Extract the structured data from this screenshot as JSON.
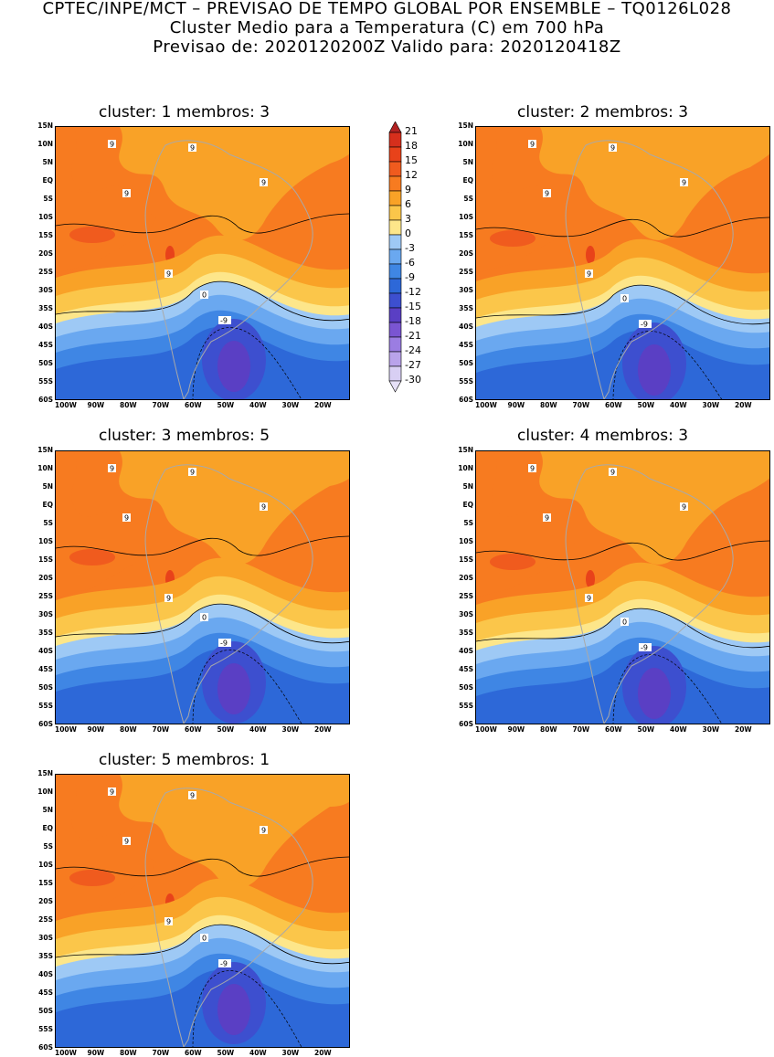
{
  "header": {
    "line1": "CPTEC/INPE/MCT – PREVISAO DE TEMPO GLOBAL POR ENSEMBLE – TQ0126L028",
    "line2": "Cluster Medio para a Temperatura (C) em 700 hPa",
    "line3": "Previsao de: 2020120200Z   Valido para: 2020120418Z"
  },
  "panels": [
    {
      "title": "cluster: 1   membros: 3"
    },
    {
      "title": "cluster: 2   membros: 3"
    },
    {
      "title": "cluster: 3   membros: 5"
    },
    {
      "title": "cluster: 4   membros: 3"
    },
    {
      "title": "cluster: 5   membros: 1"
    }
  ],
  "axes": {
    "lat_labels": [
      "15N",
      "10N",
      "5N",
      "EQ",
      "5S",
      "10S",
      "15S",
      "20S",
      "25S",
      "30S",
      "35S",
      "40S",
      "45S",
      "50S",
      "55S",
      "60S"
    ],
    "lon_labels": [
      "100W",
      "90W",
      "80W",
      "70W",
      "60W",
      "50W",
      "40W",
      "30W",
      "20W"
    ]
  },
  "legend": {
    "labels": [
      "21",
      "18",
      "15",
      "12",
      "9",
      "6",
      "3",
      "0",
      "-3",
      "-6",
      "-9",
      "-12",
      "-15",
      "-18",
      "-21",
      "-24",
      "-27",
      "-30"
    ],
    "colors": [
      "#b22222",
      "#d62f1c",
      "#e8421a",
      "#f05b1e",
      "#f77b20",
      "#f9a227",
      "#fbc64a",
      "#fde68a",
      "#9ec9f5",
      "#6aa8f0",
      "#3f86e4",
      "#2d68d8",
      "#3d4fcf",
      "#5a3fc4",
      "#7a55d2",
      "#9b7de2",
      "#b9a3ea",
      "#d8cff3"
    ],
    "top_arrow_color": "#b22222",
    "bottom_arrow_color": "#e6e0f7"
  },
  "contour_labels": {
    "nine": "9",
    "zero": "0",
    "minus_nine": "-9"
  }
}
